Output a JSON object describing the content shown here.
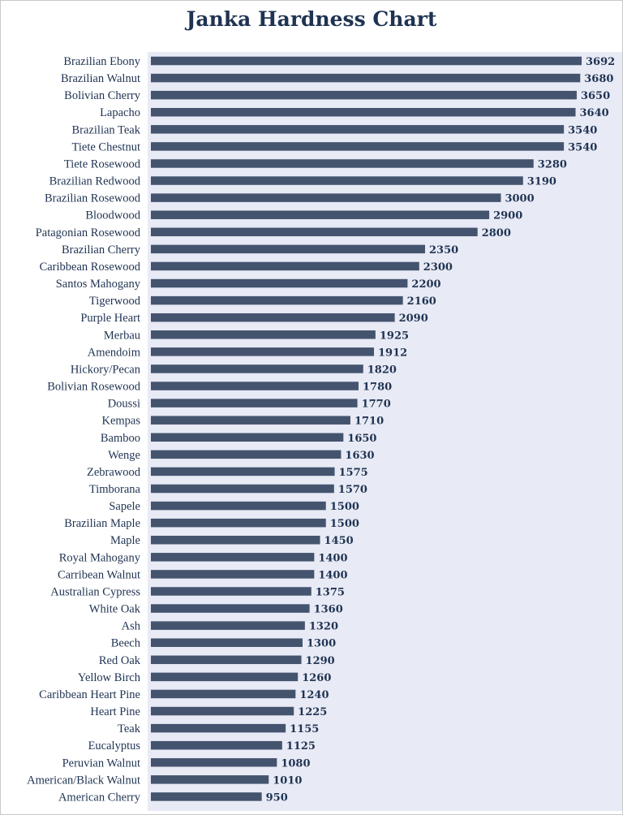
{
  "chart_data": {
    "type": "bar",
    "orientation": "horizontal",
    "title": "Janka Hardness Chart",
    "xlabel": "",
    "ylabel": "",
    "xlim": [
      0,
      3692
    ],
    "grid": false,
    "data_labels": true,
    "colors": {
      "bar": "#44546f",
      "plot_background": "#e8eaf5",
      "text": "#1f3352"
    },
    "categories": [
      "Brazilian Ebony",
      "Brazilian Walnut",
      "Bolivian Cherry",
      "Lapacho",
      "Brazilian Teak",
      "Tiete Chestnut",
      "Tiete Rosewood",
      "Brazilian Redwood",
      "Brazilian Rosewood",
      "Bloodwood",
      "Patagonian Rosewood",
      "Brazilian Cherry",
      "Caribbean Rosewood",
      "Santos Mahogany",
      "Tigerwood",
      "Purple Heart",
      "Merbau",
      "Amendoim",
      "Hickory/Pecan",
      "Bolivian Rosewood",
      "Doussi",
      "Kempas",
      "Bamboo",
      "Wenge",
      "Zebrawood",
      "Timborana",
      "Sapele",
      "Brazilian Maple",
      "Maple",
      "Royal Mahogany",
      "Carribean Walnut",
      "Australian Cypress",
      "White Oak",
      "Ash",
      "Beech",
      "Red Oak",
      "Yellow Birch",
      "Caribbean Heart Pine",
      "Heart Pine",
      "Teak",
      "Eucalyptus",
      "Peruvian Walnut",
      "American/Black Walnut",
      "American Cherry"
    ],
    "values": [
      3692,
      3680,
      3650,
      3640,
      3540,
      3540,
      3280,
      3190,
      3000,
      2900,
      2800,
      2350,
      2300,
      2200,
      2160,
      2090,
      1925,
      1912,
      1820,
      1780,
      1770,
      1710,
      1650,
      1630,
      1575,
      1570,
      1500,
      1500,
      1450,
      1400,
      1400,
      1375,
      1360,
      1320,
      1300,
      1290,
      1260,
      1240,
      1225,
      1155,
      1125,
      1080,
      1010,
      950
    ]
  }
}
